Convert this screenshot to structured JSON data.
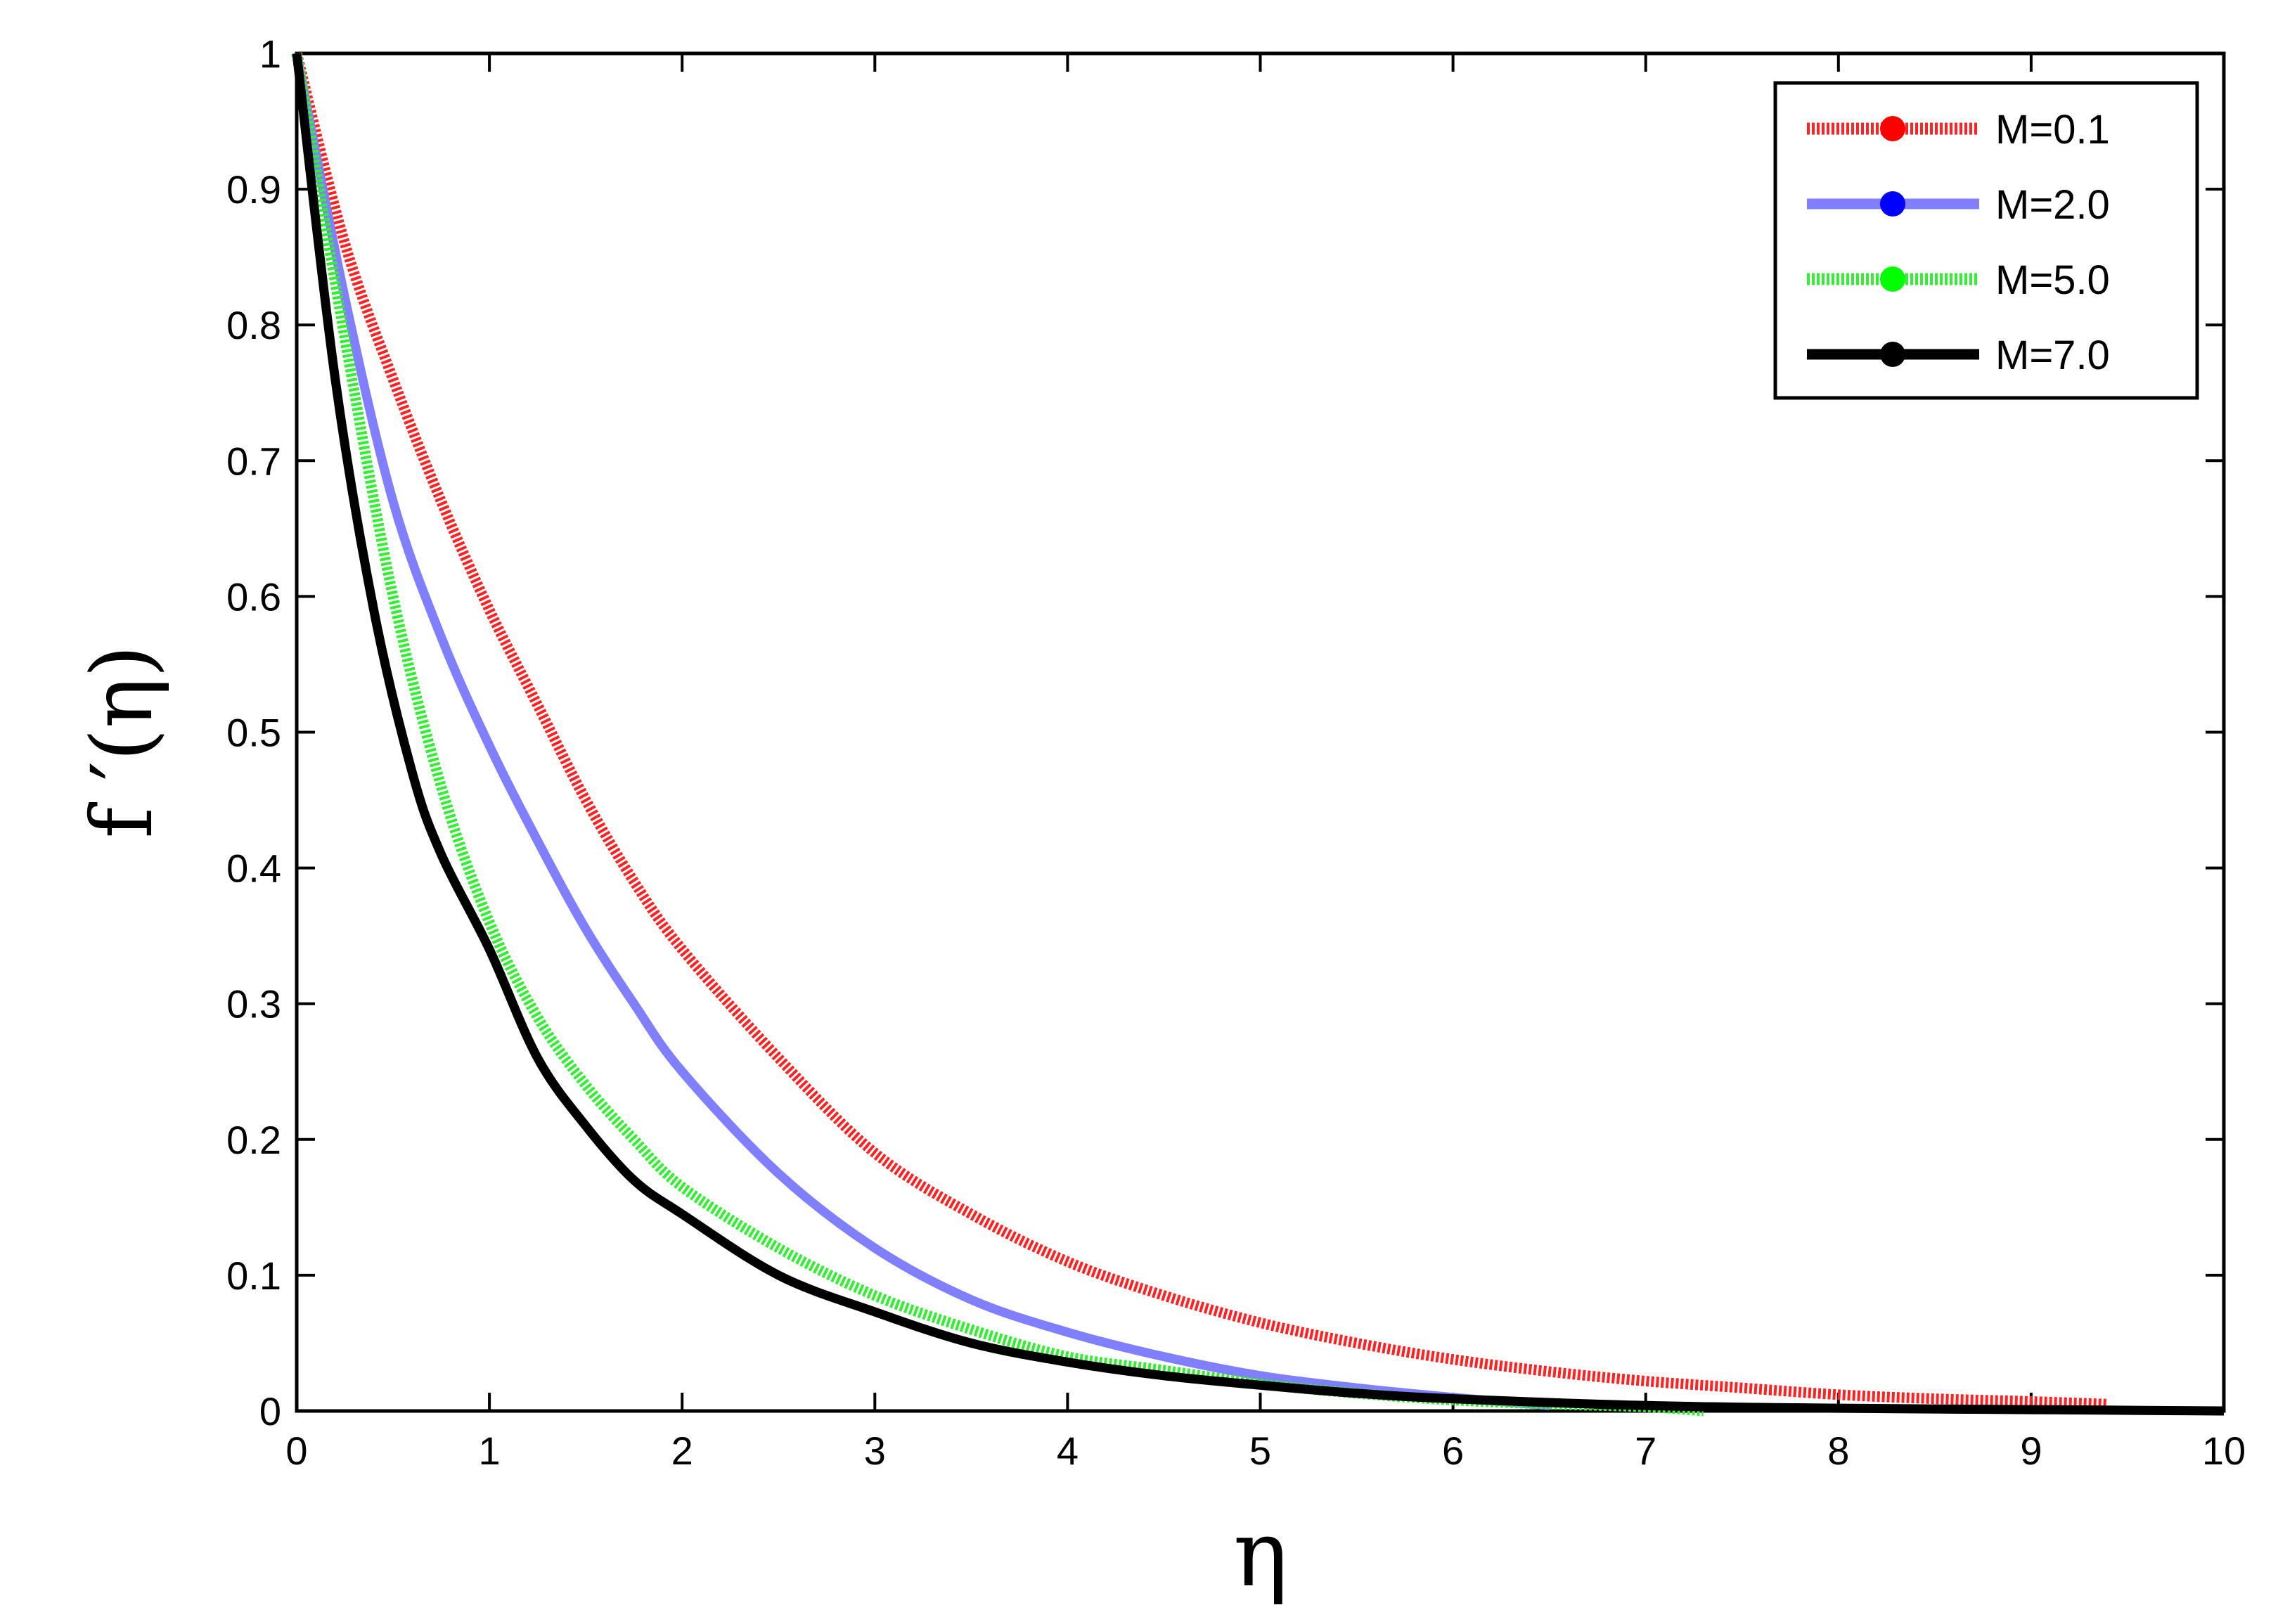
{
  "chart_data": {
    "type": "line",
    "title": "",
    "xlabel": "η",
    "ylabel": "f ′(η)",
    "xlim": [
      0,
      10
    ],
    "ylim": [
      0,
      1
    ],
    "xticks": [
      "0",
      "1",
      "2",
      "3",
      "4",
      "5",
      "6",
      "7",
      "8",
      "9",
      "10"
    ],
    "yticks": [
      "0",
      "0.1",
      "0.2",
      "0.3",
      "0.4",
      "0.5",
      "0.6",
      "0.7",
      "0.8",
      "0.9",
      "1"
    ],
    "grid": false,
    "legend_position": "top-right",
    "series": [
      {
        "name": "M=0.1",
        "color": "#ff2222",
        "marker_color": "#ff0000",
        "style": "hatched",
        "x": [
          0,
          0.25,
          0.5,
          0.75,
          1.0,
          1.25,
          1.5,
          1.75,
          2.0,
          2.5,
          3.0,
          3.5,
          4.0,
          4.5,
          5.0,
          5.5,
          6.0,
          6.5,
          7.0,
          7.5,
          8.0,
          8.5,
          9.0,
          9.4
        ],
        "y": [
          1.0,
          0.86,
          0.76,
          0.67,
          0.59,
          0.52,
          0.45,
          0.39,
          0.34,
          0.26,
          0.19,
          0.145,
          0.11,
          0.085,
          0.065,
          0.05,
          0.038,
          0.029,
          0.022,
          0.017,
          0.012,
          0.009,
          0.007,
          0.005
        ]
      },
      {
        "name": "M=2.0",
        "color": "#7f7fff",
        "marker_color": "#0000ff",
        "style": "solid",
        "x": [
          0,
          0.25,
          0.5,
          0.75,
          1.0,
          1.25,
          1.5,
          1.75,
          2.0,
          2.5,
          3.0,
          3.5,
          4.0,
          4.5,
          5.0,
          5.5,
          6.0,
          6.5
        ],
        "y": [
          1.0,
          0.82,
          0.67,
          0.57,
          0.49,
          0.42,
          0.355,
          0.3,
          0.25,
          0.175,
          0.12,
          0.082,
          0.058,
          0.04,
          0.026,
          0.017,
          0.01,
          0.004
        ]
      },
      {
        "name": "M=5.0",
        "color": "#33ee33",
        "marker_color": "#00ff00",
        "style": "hatched",
        "x": [
          0,
          0.25,
          0.5,
          0.75,
          1.0,
          1.25,
          1.5,
          1.75,
          2.0,
          2.5,
          3.0,
          3.5,
          4.0,
          4.5,
          5.0,
          5.5,
          6.0,
          6.5,
          7.0,
          7.3
        ],
        "y": [
          1.0,
          0.79,
          0.6,
          0.46,
          0.36,
          0.29,
          0.24,
          0.2,
          0.165,
          0.12,
          0.085,
          0.06,
          0.04,
          0.03,
          0.02,
          0.013,
          0.008,
          0.005,
          0.003,
          0.0
        ]
      },
      {
        "name": "M=7.0",
        "color": "#000000",
        "marker_color": "#000000",
        "style": "solid",
        "x": [
          0,
          0.2,
          0.4,
          0.6,
          0.75,
          1.0,
          1.25,
          1.5,
          1.75,
          2.0,
          2.5,
          3.0,
          3.5,
          4.0,
          4.5,
          5.0,
          5.5,
          6.0,
          7.0,
          8.0,
          9.0,
          10.0
        ],
        "y": [
          1.0,
          0.76,
          0.59,
          0.47,
          0.41,
          0.34,
          0.26,
          0.21,
          0.17,
          0.145,
          0.1,
          0.073,
          0.05,
          0.036,
          0.026,
          0.019,
          0.013,
          0.009,
          0.004,
          0.002,
          0.001,
          0.0
        ]
      }
    ]
  }
}
